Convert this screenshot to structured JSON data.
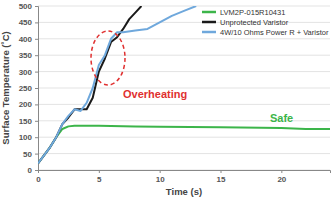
{
  "chart_data": {
    "type": "line",
    "x_label": "Time (s)",
    "y_label": "Surface Temperature (˚C)",
    "annotations": [
      "Overheating",
      "Safe"
    ],
    "xlim": [
      0,
      24
    ],
    "xticks": [
      0,
      5,
      10,
      15,
      20
    ],
    "ylim": [
      0,
      500
    ],
    "yticks": [
      0,
      50,
      100,
      150,
      200,
      250,
      300,
      350,
      400,
      450,
      500
    ],
    "grid": true,
    "legend": "upper right",
    "series": [
      {
        "name": "LVM2P-015R10431",
        "color": "#3cb54a",
        "x": [
          0,
          1,
          1.5,
          2,
          2.5,
          3,
          5,
          8,
          10,
          15,
          20,
          22,
          24
        ],
        "values": [
          20,
          70,
          100,
          125,
          133,
          135,
          135,
          133,
          132,
          130,
          128,
          125,
          125
        ]
      },
      {
        "name": "Unprotected Varistor",
        "color": "#1a1a1a",
        "x": [
          0,
          1,
          1.5,
          2,
          2.5,
          3,
          4,
          4.5,
          5,
          5.5,
          6,
          6.5,
          7,
          7.5,
          8,
          8.5
        ],
        "values": [
          20,
          70,
          100,
          140,
          160,
          185,
          185,
          220,
          300,
          340,
          390,
          405,
          430,
          460,
          480,
          500
        ]
      },
      {
        "name": "4W/10 Ohms Power R + Varistor",
        "color": "#6fa8dc",
        "x": [
          0,
          1,
          1.5,
          2,
          2.5,
          3,
          3.5,
          4,
          4.5,
          5,
          5.5,
          6,
          6.5,
          7,
          8,
          9,
          10,
          11,
          12,
          13
        ],
        "values": [
          20,
          70,
          100,
          140,
          165,
          185,
          180,
          205,
          250,
          320,
          350,
          400,
          420,
          420,
          425,
          430,
          450,
          470,
          485,
          500
        ]
      }
    ]
  }
}
